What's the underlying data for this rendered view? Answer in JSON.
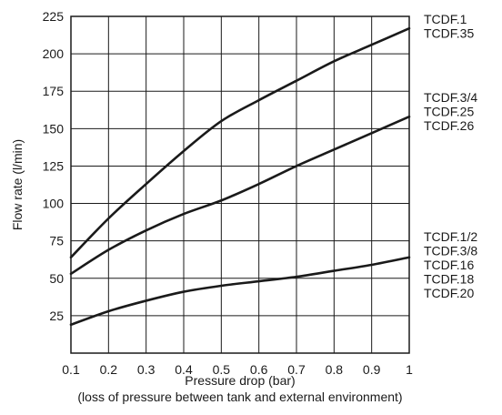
{
  "chart_data": {
    "type": "line",
    "xlabel": "Pressure drop (bar)",
    "xlabel_note": "(loss of pressure between tank and external environment)",
    "ylabel": "Flow rate (l/min)",
    "xlim": [
      0.1,
      1.0
    ],
    "ylim": [
      0,
      225
    ],
    "x_ticks": [
      "0.1",
      "0.2",
      "0.3",
      "0.4",
      "0.5",
      "0.6",
      "0.7",
      "0.8",
      "0.9",
      "1"
    ],
    "y_ticks": [
      "25",
      "50",
      "75",
      "100",
      "125",
      "150",
      "175",
      "200",
      "225"
    ],
    "grid": true,
    "series": [
      {
        "name": "TCDF.1 / TCDF.35",
        "x": [
          0.1,
          0.2,
          0.3,
          0.4,
          0.5,
          0.6,
          0.7,
          0.8,
          0.9,
          1.0
        ],
        "y": [
          64,
          90,
          113,
          135,
          155,
          169,
          182,
          195,
          206,
          217
        ]
      },
      {
        "name": "TCDF.3/4 / TCDF.25 / TCDF.26",
        "x": [
          0.1,
          0.2,
          0.3,
          0.4,
          0.5,
          0.6,
          0.7,
          0.8,
          0.9,
          1.0
        ],
        "y": [
          53,
          69,
          82,
          93,
          102,
          113,
          125,
          136,
          147,
          158
        ]
      },
      {
        "name": "TCDF.1/2 / TCDF.3/8 / TCDF.16 / TCDF.18 / TCDF.20",
        "x": [
          0.1,
          0.2,
          0.3,
          0.4,
          0.5,
          0.6,
          0.7,
          0.8,
          0.9,
          1.0
        ],
        "y": [
          19,
          28,
          35,
          41,
          45,
          48,
          51,
          55,
          59,
          64
        ]
      }
    ],
    "legend_groups": [
      [
        "TCDF.1",
        "TCDF.35"
      ],
      [
        "TCDF.3/4",
        "TCDF.25",
        "TCDF.26"
      ],
      [
        "TCDF.1/2",
        "TCDF.3/8",
        "TCDF.16",
        "TCDF.18",
        "TCDF.20"
      ]
    ]
  }
}
